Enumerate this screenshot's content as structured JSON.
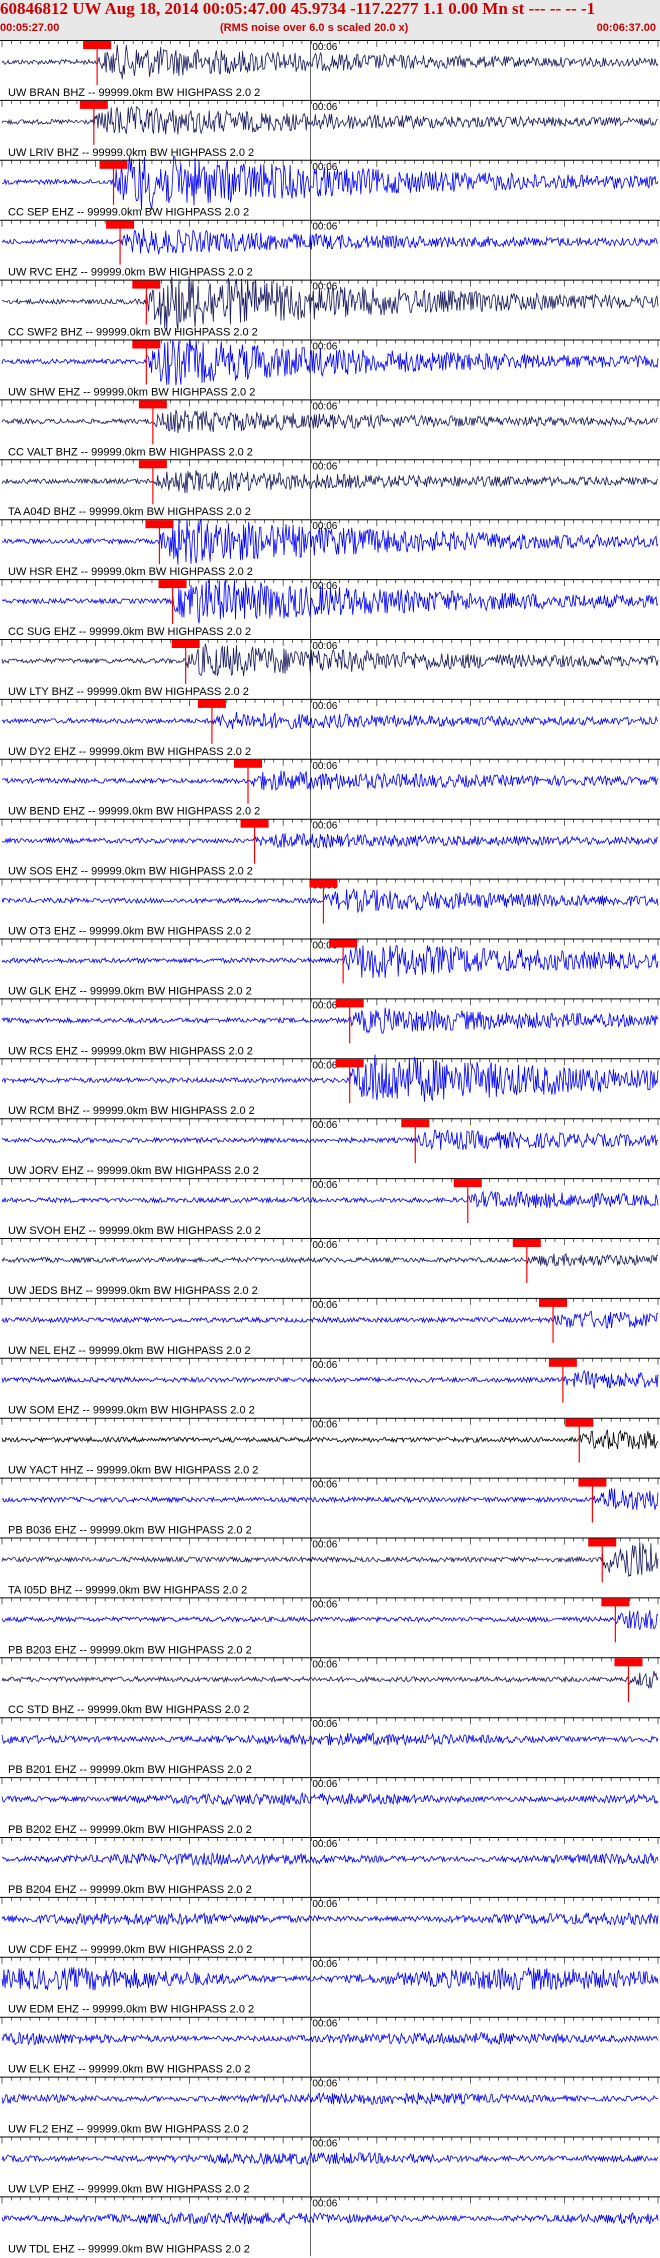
{
  "header": {
    "title": "60846812 UW Aug 18, 2014 00:05:47.00   45.9734 -117.2277  1.1 0.00 Mn st --- -- --  -1",
    "start_time": "00:05:27.00",
    "end_time": "00:06:37.00",
    "note": "(RMS noise over 6.0 s scaled 20.0 x)",
    "title_color": "#cc0000",
    "header_bg": "#e8e8e8"
  },
  "chart_data": {
    "type": "line",
    "title": "60846812 UW Aug 18, 2014 00:05:47.00   45.9734 -117.2277  1.1 0.00 Mn st --- -- --  -1",
    "x_range": [
      "00:05:27.00",
      "00:06:37.00"
    ],
    "x_minute_label": "00:06",
    "x_minute_fraction": 0.47,
    "pick_color": "#ff0000",
    "traces": [
      {
        "label": "UW BRAN BHZ -- 99999.0km BW  HIGHPASS  2.0  2",
        "color": "#1a1a5e",
        "pick": 0.145,
        "amp": 0.55
      },
      {
        "label": "UW LRIV BHZ -- 99999.0km BW  HIGHPASS  2.0  2",
        "color": "#1a1a5e",
        "pick": 0.14,
        "amp": 0.5
      },
      {
        "label": "CC SEP EHZ -- 99999.0km BW  HIGHPASS  2.0  2",
        "color": "#0000ff",
        "pick": 0.17,
        "amp": 1.0
      },
      {
        "label": "UW RVC EHZ -- 99999.0km BW  HIGHPASS  2.0  2",
        "color": "#0000ff",
        "pick": 0.18,
        "amp": 0.4
      },
      {
        "label": "CC SWF2 BHZ -- 99999.0km BW  HIGHPASS  2.0  2",
        "color": "#1a1a5e",
        "pick": 0.22,
        "amp": 1.0
      },
      {
        "label": "UW SHW EHZ -- 99999.0km BW  HIGHPASS  2.0  2",
        "color": "#0000ff",
        "pick": 0.22,
        "amp": 0.8
      },
      {
        "label": "CC VALT BHZ -- 99999.0km BW  HIGHPASS  2.0  2",
        "color": "#1a1a5e",
        "pick": 0.23,
        "amp": 0.35
      },
      {
        "label": "TA A04D BHZ -- 99999.0km BW  HIGHPASS  2.0  2",
        "color": "#1a1a5e",
        "pick": 0.23,
        "amp": 0.35
      },
      {
        "label": "UW HSR EHZ -- 99999.0km BW  HIGHPASS  2.0  2",
        "color": "#0000ff",
        "pick": 0.24,
        "amp": 0.8
      },
      {
        "label": "CC SUG EHZ -- 99999.0km BW  HIGHPASS  2.0  2",
        "color": "#0000ff",
        "pick": 0.26,
        "amp": 0.8
      },
      {
        "label": "UW LTY BHZ -- 99999.0km BW  HIGHPASS  2.0  2",
        "color": "#1a1a5e",
        "pick": 0.28,
        "amp": 0.55
      },
      {
        "label": "UW DY2 EHZ -- 99999.0km BW  HIGHPASS  2.0  2",
        "color": "#0000ff",
        "pick": 0.32,
        "amp": 0.25
      },
      {
        "label": "UW BEND EHZ -- 99999.0km BW  HIGHPASS  2.0  2",
        "color": "#0000ff",
        "pick": 0.375,
        "amp": 0.3
      },
      {
        "label": "UW SOS EHZ -- 99999.0km BW  HIGHPASS  2.0  2",
        "color": "#0000ff",
        "pick": 0.385,
        "amp": 0.2
      },
      {
        "label": "UW OT3 EHZ -- 99999.0km BW  HIGHPASS  2.0  2",
        "color": "#0000ff",
        "pick": 0.49,
        "amp": 0.35
      },
      {
        "label": "UW GLK EHZ -- 99999.0km BW  HIGHPASS  2.0  2",
        "color": "#0000ff",
        "pick": 0.52,
        "amp": 0.6
      },
      {
        "label": "UW RCS EHZ -- 99999.0km BW  HIGHPASS  2.0  2",
        "color": "#0000ff",
        "pick": 0.53,
        "amp": 0.4
      },
      {
        "label": "UW RCM BHZ -- 99999.0km BW  HIGHPASS  2.0  2",
        "color": "#0000ff",
        "pick": 0.53,
        "amp": 0.9
      },
      {
        "label": "UW JORV EHZ -- 99999.0km BW  HIGHPASS  2.0  2",
        "color": "#0000ff",
        "pick": 0.63,
        "amp": 0.3
      },
      {
        "label": "UW SVOH EHZ -- 99999.0km BW  HIGHPASS  2.0  2",
        "color": "#0000ff",
        "pick": 0.71,
        "amp": 0.25
      },
      {
        "label": "UW JEDS BHZ -- 99999.0km BW  HIGHPASS  2.0  2",
        "color": "#1a1a5e",
        "pick": 0.8,
        "amp": 0.15
      },
      {
        "label": "UW NEL EHZ -- 99999.0km BW  HIGHPASS  2.0  2",
        "color": "#0000ff",
        "pick": 0.84,
        "amp": 0.25
      },
      {
        "label": "UW SOM EHZ -- 99999.0km BW  HIGHPASS  2.0  2",
        "color": "#0000ff",
        "pick": 0.855,
        "amp": 0.25
      },
      {
        "label": "UW YACT HHZ -- 99999.0km BW  HIGHPASS  2.0  2",
        "color": "#000000",
        "pick": 0.88,
        "amp": 0.3
      },
      {
        "label": "PB B036 EHZ -- 99999.0km BW  HIGHPASS  2.0  2",
        "color": "#0000ff",
        "pick": 0.9,
        "amp": 0.35
      },
      {
        "label": "TA I05D BHZ -- 99999.0km BW  HIGHPASS  2.0  2",
        "color": "#1a1a5e",
        "pick": 0.915,
        "amp": 0.7
      },
      {
        "label": "PB B203 EHZ -- 99999.0km BW  HIGHPASS  2.0  2",
        "color": "#0000ff",
        "pick": 0.935,
        "amp": 0.3
      },
      {
        "label": "CC STD BHZ -- 99999.0km BW  HIGHPASS  2.0  2",
        "color": "#1a1a5e",
        "pick": 0.955,
        "amp": 0.25
      },
      {
        "label": "PB B201 EHZ -- 99999.0km BW  HIGHPASS  2.0  2",
        "color": "#0000ff",
        "pick": null,
        "amp": 0.3
      },
      {
        "label": "PB B202 EHZ -- 99999.0km BW  HIGHPASS  2.0  2",
        "color": "#0000ff",
        "pick": null,
        "amp": 0.3
      },
      {
        "label": "PB B204 EHZ -- 99999.0km BW  HIGHPASS  2.0  2",
        "color": "#0000ff",
        "pick": null,
        "amp": 0.3
      },
      {
        "label": "UW CDF EHZ -- 99999.0km BW  HIGHPASS  2.0  2",
        "color": "#0000ff",
        "pick": null,
        "amp": 0.3
      },
      {
        "label": "UW EDM EHZ -- 99999.0km BW  HIGHPASS  2.0  2",
        "color": "#0000ff",
        "pick": null,
        "amp": 0.7
      },
      {
        "label": "UW ELK EHZ -- 99999.0km BW  HIGHPASS  2.0  2",
        "color": "#0000ff",
        "pick": null,
        "amp": 0.3
      },
      {
        "label": "UW FL2 EHZ -- 99999.0km BW  HIGHPASS  2.0  2",
        "color": "#0000ff",
        "pick": null,
        "amp": 0.3
      },
      {
        "label": "UW LVP EHZ -- 99999.0km BW  HIGHPASS  2.0  2",
        "color": "#0000ff",
        "pick": null,
        "amp": 0.3
      },
      {
        "label": "UW TDL EHZ -- 99999.0km BW  HIGHPASS  2.0  2",
        "color": "#0000ff",
        "pick": null,
        "amp": 0.3
      }
    ]
  }
}
